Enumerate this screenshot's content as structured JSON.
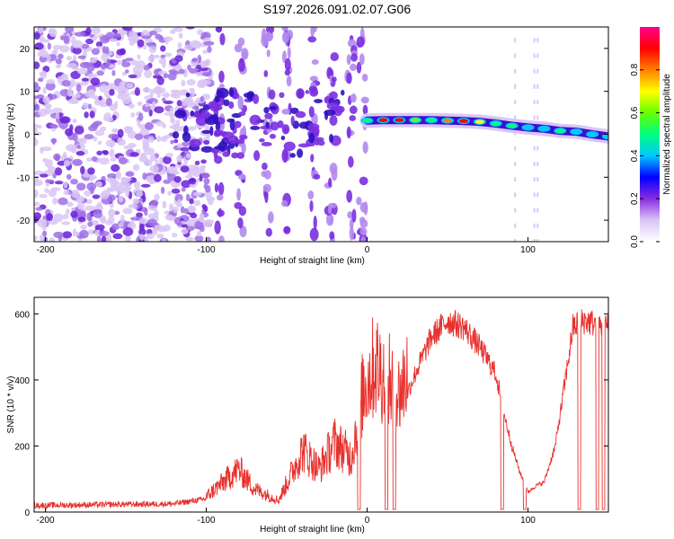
{
  "title": "S197.2026.091.02.07.G06",
  "chart_data": [
    {
      "type": "heatmap",
      "xlabel": "Height of straight line (km)",
      "ylabel": "Frequency (Hz)",
      "xlim": [
        -207,
        150
      ],
      "ylim": [
        -25,
        25
      ],
      "xticks": [
        -200,
        -100,
        0,
        100
      ],
      "yticks": [
        -20,
        -10,
        0,
        10,
        20
      ],
      "colorbar": {
        "label": "Normalized spectral amplitude",
        "range": [
          0,
          1
        ],
        "ticks": [
          "0.0",
          "0.2",
          "0.4",
          "0.6",
          "0.8"
        ],
        "colors": [
          "#ffffff",
          "#d9c6f5",
          "#8a2be2",
          "#0000ff",
          "#00c8ff",
          "#00ff7f",
          "#66ff00",
          "#ffff00",
          "#ff8000",
          "#ff0000",
          "#ff0090"
        ]
      },
      "ridge": [
        {
          "x": 0,
          "freq": 3.2,
          "amp": 0.45
        },
        {
          "x": 10,
          "freq": 3.3,
          "amp": 0.85
        },
        {
          "x": 20,
          "freq": 3.3,
          "amp": 0.9
        },
        {
          "x": 30,
          "freq": 3.3,
          "amp": 0.6
        },
        {
          "x": 40,
          "freq": 3.3,
          "amp": 0.5
        },
        {
          "x": 50,
          "freq": 3.2,
          "amp": 0.75
        },
        {
          "x": 60,
          "freq": 3.1,
          "amp": 0.9
        },
        {
          "x": 70,
          "freq": 2.9,
          "amp": 0.7
        },
        {
          "x": 80,
          "freq": 2.5,
          "amp": 0.5
        },
        {
          "x": 90,
          "freq": 2.0,
          "amp": 0.45
        },
        {
          "x": 100,
          "freq": 1.6,
          "amp": 0.4
        },
        {
          "x": 110,
          "freq": 1.3,
          "amp": 0.4
        },
        {
          "x": 120,
          "freq": 0.8,
          "amp": 0.5
        },
        {
          "x": 130,
          "freq": 0.6,
          "amp": 0.4
        },
        {
          "x": 140,
          "freq": 0.0,
          "amp": 0.4
        },
        {
          "x": 150,
          "freq": -0.5,
          "amp": 0.35
        }
      ]
    },
    {
      "type": "line",
      "xlabel": "Height of straight line (km)",
      "ylabel": "SNR (10 * v/v)",
      "xlim": [
        -207,
        150
      ],
      "ylim": [
        0,
        650
      ],
      "xticks": [
        -200,
        -100,
        0,
        100
      ],
      "yticks": [
        0,
        200,
        400,
        600
      ],
      "color": "#e8302c",
      "envelope": [
        {
          "x": -207,
          "snr": 20
        },
        {
          "x": -120,
          "snr": 25
        },
        {
          "x": -100,
          "snr": 40
        },
        {
          "x": -80,
          "snr": 110
        },
        {
          "x": -70,
          "snr": 60
        },
        {
          "x": -55,
          "snr": 30
        },
        {
          "x": -40,
          "snr": 160
        },
        {
          "x": -30,
          "snr": 110
        },
        {
          "x": -20,
          "snr": 180
        },
        {
          "x": -10,
          "snr": 140
        },
        {
          "x": -2,
          "snr": 320
        },
        {
          "x": 5,
          "snr": 380
        },
        {
          "x": 20,
          "snr": 300
        },
        {
          "x": 30,
          "snr": 420
        },
        {
          "x": 40,
          "snr": 530
        },
        {
          "x": 50,
          "snr": 580
        },
        {
          "x": 60,
          "snr": 560
        },
        {
          "x": 70,
          "snr": 500
        },
        {
          "x": 80,
          "snr": 420
        },
        {
          "x": 85,
          "snr": 300
        },
        {
          "x": 90,
          "snr": 200
        },
        {
          "x": 95,
          "snr": 120
        },
        {
          "x": 100,
          "snr": 60
        },
        {
          "x": 105,
          "snr": 80
        },
        {
          "x": 110,
          "snr": 90
        },
        {
          "x": 117,
          "snr": 200
        },
        {
          "x": 122,
          "snr": 360
        },
        {
          "x": 128,
          "snr": 560
        },
        {
          "x": 135,
          "snr": 580
        },
        {
          "x": 142,
          "snr": 570
        },
        {
          "x": 150,
          "snr": 560
        }
      ],
      "dropouts": [
        -5,
        12,
        17,
        84,
        98,
        132,
        143,
        147
      ]
    }
  ]
}
